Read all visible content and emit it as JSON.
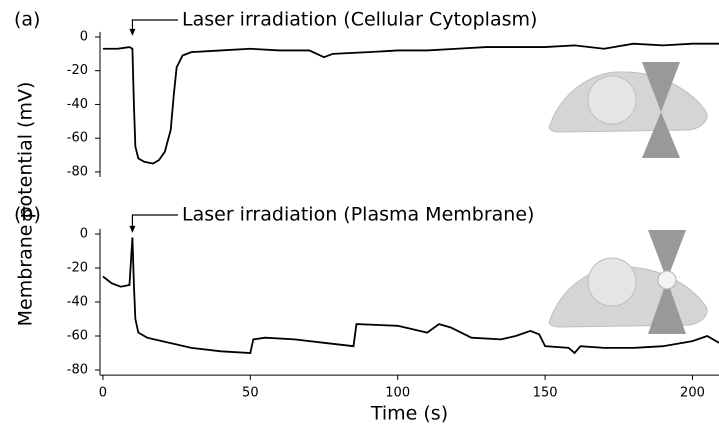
{
  "chart_data": [
    {
      "type": "line",
      "panel_label": "(a)",
      "ylabel": "Membrane potential (mV)",
      "annotation": {
        "text": "Laser irradiation (Cellular Cytoplasm)",
        "x": 10
      },
      "xlim": [
        -1,
        209
      ],
      "ylim": [
        -83,
        3
      ],
      "yticks": [
        0,
        -20,
        -40,
        -60,
        -80
      ],
      "series": [
        {
          "color": "#000000",
          "x": [
            0,
            5,
            9,
            10,
            10.5,
            11,
            12,
            14,
            17,
            19,
            21,
            23,
            24,
            25,
            27,
            30,
            40,
            50,
            60,
            70,
            75,
            78,
            90,
            100,
            110,
            120,
            130,
            140,
            150,
            160,
            170,
            180,
            190,
            200,
            209
          ],
          "values": [
            -7,
            -7,
            -6,
            -7,
            -40,
            -65,
            -72,
            -74,
            -75,
            -73,
            -68,
            -55,
            -35,
            -18,
            -11,
            -9,
            -8,
            -7,
            -8,
            -8,
            -12,
            -10,
            -9,
            -8,
            -8,
            -7,
            -6,
            -6,
            -6,
            -5,
            -7,
            -4,
            -5,
            -4,
            -4
          ]
        }
      ]
    },
    {
      "type": "line",
      "panel_label": "(b)",
      "xlabel": "Time (s)",
      "annotation": {
        "text": "Laser irradiation (Plasma Membrane)",
        "x": 10
      },
      "xlim": [
        -1,
        209
      ],
      "ylim": [
        -83,
        3
      ],
      "yticks": [
        0,
        -20,
        -40,
        -60,
        -80
      ],
      "xticks": [
        0,
        50,
        100,
        150,
        200
      ],
      "series": [
        {
          "color": "#000000",
          "x": [
            0,
            3,
            6,
            9,
            10,
            10.5,
            11,
            12,
            15,
            20,
            30,
            40,
            50,
            51,
            55,
            65,
            75,
            85,
            86,
            100,
            110,
            114,
            118,
            125,
            135,
            140,
            145,
            148,
            150,
            158,
            160,
            162,
            170,
            180,
            190,
            200,
            205,
            209
          ],
          "values": [
            -25,
            -29,
            -31,
            -30,
            -2,
            -30,
            -50,
            -58,
            -61,
            -63,
            -67,
            -69,
            -70,
            -62,
            -61,
            -62,
            -64,
            -66,
            -53,
            -54,
            -58,
            -53,
            -55,
            -61,
            -62,
            -60,
            -57,
            -59,
            -66,
            -67,
            -70,
            -66,
            -67,
            -67,
            -66,
            -63,
            -60,
            -64
          ]
        }
      ]
    }
  ]
}
